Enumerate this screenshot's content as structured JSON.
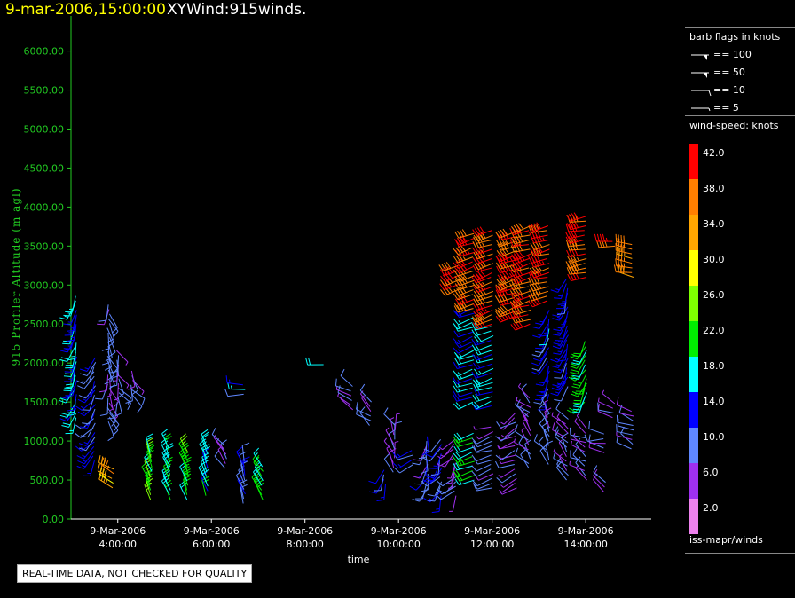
{
  "header": {
    "date_time": "9-mar-2006,15:00:00",
    "title": "XYWind:915winds."
  },
  "chart_data": {
    "type": "scatter",
    "subtype": "wind-barb time-height",
    "xlabel": "time",
    "ylabel": "915 Profiler Altitude (m agl)",
    "ylim": [
      0,
      6200
    ],
    "y_ticks": [
      0,
      500,
      1000,
      1500,
      2000,
      2500,
      3000,
      3500,
      4000,
      4500,
      5000,
      5500,
      6000
    ],
    "y_tick_labels": [
      "0.00",
      "500.00",
      "1000.00",
      "1500.00",
      "2000.00",
      "2500.00",
      "3000.00",
      "3500.00",
      "4000.00",
      "4500.00",
      "5000.00",
      "5500.00",
      "6000.00"
    ],
    "xlim_hours": [
      3.0,
      15.4
    ],
    "x_ticks": [
      {
        "hour": 4,
        "date": "9-Mar-2006",
        "time": "4:00:00"
      },
      {
        "hour": 6,
        "date": "9-Mar-2006",
        "time": "6:00:00"
      },
      {
        "hour": 8,
        "date": "9-Mar-2006",
        "time": "8:00:00"
      },
      {
        "hour": 10,
        "date": "9-Mar-2006",
        "time": "10:00:00"
      },
      {
        "hour": 12,
        "date": "9-Mar-2006",
        "time": "12:00:00"
      },
      {
        "hour": 14,
        "date": "9-Mar-2006",
        "time": "14:00:00"
      }
    ],
    "axis_color": "#22cc22",
    "grid": false,
    "wind_profiles": [
      {
        "hour": 3.1,
        "low": 1300,
        "high": 2900,
        "speed": 16,
        "dir": 200,
        "spread": 20
      },
      {
        "hour": 3.5,
        "low": 750,
        "high": 2100,
        "speed": 12,
        "dir": 210,
        "spread": 25
      },
      {
        "hour": 3.8,
        "low": 1250,
        "high": 2800,
        "speed": 9,
        "dir": 170,
        "spread": 30
      },
      {
        "hour": 4.0,
        "low": 1500,
        "high": 2200,
        "speed": 8,
        "dir": 160,
        "spread": 35
      },
      {
        "hour": 4.3,
        "low": 1600,
        "high": 1950,
        "speed": 10,
        "dir": 150,
        "spread": 30
      },
      {
        "hour": 3.9,
        "low": 400,
        "high": 650,
        "speed": 34,
        "dir": 300,
        "spread": 10
      },
      {
        "hour": 4.7,
        "low": 250,
        "high": 900,
        "speed": 22,
        "dir": 340,
        "spread": 10
      },
      {
        "hour": 5.1,
        "low": 250,
        "high": 950,
        "speed": 20,
        "dir": 340,
        "spread": 10
      },
      {
        "hour": 5.5,
        "low": 250,
        "high": 900,
        "speed": 22,
        "dir": 340,
        "spread": 10
      },
      {
        "hour": 5.9,
        "low": 300,
        "high": 900,
        "speed": 18,
        "dir": 340,
        "spread": 10
      },
      {
        "hour": 6.3,
        "low": 650,
        "high": 1000,
        "speed": 7,
        "dir": 320,
        "spread": 20
      },
      {
        "hour": 6.7,
        "low": 200,
        "high": 750,
        "speed": 12,
        "dir": 340,
        "spread": 15
      },
      {
        "hour": 7.1,
        "low": 250,
        "high": 700,
        "speed": 20,
        "dir": 330,
        "spread": 10
      },
      {
        "hour": 6.7,
        "low": 1600,
        "high": 1750,
        "speed": 14,
        "dir": 270,
        "spread": 10
      },
      {
        "hour": 8.4,
        "low": 1980,
        "high": 2020,
        "speed": 18,
        "dir": 270,
        "spread": 5
      },
      {
        "hour": 9.0,
        "low": 1400,
        "high": 1750,
        "speed": 8,
        "dir": 300,
        "spread": 20
      },
      {
        "hour": 9.4,
        "low": 1200,
        "high": 1550,
        "speed": 8,
        "dir": 310,
        "spread": 20
      },
      {
        "hour": 9.7,
        "low": 450,
        "high": 650,
        "speed": 13,
        "dir": 200,
        "spread": 15
      },
      {
        "hour": 9.9,
        "low": 600,
        "high": 1250,
        "speed": 7,
        "dir": 340,
        "spread": 25
      },
      {
        "hour": 10.3,
        "low": 700,
        "high": 900,
        "speed": 12,
        "dir": 230,
        "spread": 25
      },
      {
        "hour": 10.6,
        "low": 400,
        "high": 1100,
        "speed": 10,
        "dir": 200,
        "spread": 30
      },
      {
        "hour": 10.9,
        "low": 300,
        "high": 1050,
        "speed": 11,
        "dir": 210,
        "spread": 30
      },
      {
        "hour": 11.2,
        "low": 300,
        "high": 1050,
        "speed": 7,
        "dir": 220,
        "spread": 30
      },
      {
        "hour": 11.3,
        "low": 2950,
        "high": 3300,
        "speed": 40,
        "dir": 250,
        "spread": 8
      },
      {
        "hour": 11.6,
        "low": 1500,
        "high": 2700,
        "speed": 16,
        "dir": 250,
        "spread": 8
      },
      {
        "hour": 11.6,
        "low": 2700,
        "high": 3700,
        "speed": 40,
        "dir": 250,
        "spread": 8
      },
      {
        "hour": 11.6,
        "low": 500,
        "high": 1150,
        "speed": 22,
        "dir": 250,
        "spread": 10
      },
      {
        "hour": 12.0,
        "low": 1450,
        "high": 2500,
        "speed": 16,
        "dir": 250,
        "spread": 8
      },
      {
        "hour": 12.0,
        "low": 2500,
        "high": 3700,
        "speed": 40,
        "dir": 250,
        "spread": 8
      },
      {
        "hour": 12.0,
        "low": 400,
        "high": 1200,
        "speed": 8,
        "dir": 250,
        "spread": 15
      },
      {
        "hour": 12.5,
        "low": 2600,
        "high": 3700,
        "speed": 40,
        "dir": 250,
        "spread": 10
      },
      {
        "hour": 12.5,
        "low": 400,
        "high": 1400,
        "speed": 7,
        "dir": 240,
        "spread": 20
      },
      {
        "hour": 12.8,
        "low": 2500,
        "high": 3800,
        "speed": 40,
        "dir": 255,
        "spread": 10
      },
      {
        "hour": 12.8,
        "low": 650,
        "high": 1600,
        "speed": 8,
        "dir": 320,
        "spread": 25
      },
      {
        "hour": 13.2,
        "low": 2800,
        "high": 3800,
        "speed": 40,
        "dir": 255,
        "spread": 8
      },
      {
        "hour": 13.2,
        "low": 1600,
        "high": 2700,
        "speed": 14,
        "dir": 200,
        "spread": 15
      },
      {
        "hour": 13.2,
        "low": 700,
        "high": 1400,
        "speed": 9,
        "dir": 330,
        "spread": 25
      },
      {
        "hour": 13.6,
        "low": 1700,
        "high": 3100,
        "speed": 14,
        "dir": 200,
        "spread": 15
      },
      {
        "hour": 13.6,
        "low": 500,
        "high": 1300,
        "speed": 8,
        "dir": 320,
        "spread": 25
      },
      {
        "hour": 14.0,
        "low": 3100,
        "high": 3900,
        "speed": 40,
        "dir": 260,
        "spread": 8
      },
      {
        "hour": 14.0,
        "low": 1500,
        "high": 2300,
        "speed": 20,
        "dir": 210,
        "spread": 15
      },
      {
        "hour": 14.0,
        "low": 500,
        "high": 1200,
        "speed": 7,
        "dir": 300,
        "spread": 25
      },
      {
        "hour": 14.4,
        "low": 850,
        "high": 1100,
        "speed": 9,
        "dir": 280,
        "spread": 20
      },
      {
        "hour": 14.6,
        "low": 3500,
        "high": 3600,
        "speed": 42,
        "dir": 270,
        "spread": 5
      },
      {
        "hour": 14.6,
        "low": 1300,
        "high": 1500,
        "speed": 8,
        "dir": 300,
        "spread": 20
      },
      {
        "hour": 14.4,
        "low": 350,
        "high": 500,
        "speed": 7,
        "dir": 310,
        "spread": 10
      },
      {
        "hour": 15.0,
        "low": 3100,
        "high": 3550,
        "speed": 37,
        "dir": 280,
        "spread": 10
      },
      {
        "hour": 15.0,
        "low": 900,
        "high": 1400,
        "speed": 8,
        "dir": 300,
        "spread": 20
      }
    ]
  },
  "legend": {
    "barb_title": "barb flags in knots",
    "barbs": [
      {
        "label": "== 100",
        "knots": 100
      },
      {
        "label": "== 50",
        "knots": 50
      },
      {
        "label": "== 10",
        "knots": 10
      },
      {
        "label": "== 5",
        "knots": 5
      }
    ],
    "speed_title": "wind-speed: knots",
    "speed_bins": [
      {
        "label": "42.0",
        "color": "#ff0000"
      },
      {
        "label": "38.0",
        "color": "#ff7f00"
      },
      {
        "label": "34.0",
        "color": "#ffa500"
      },
      {
        "label": "30.0",
        "color": "#ffff00"
      },
      {
        "label": "26.0",
        "color": "#7fff00"
      },
      {
        "label": "22.0",
        "color": "#00ee00"
      },
      {
        "label": "18.0",
        "color": "#00ffff"
      },
      {
        "label": "14.0",
        "color": "#0000ff"
      },
      {
        "label": "10.0",
        "color": "#5f87ff"
      },
      {
        "label": "6.0",
        "color": "#9f30ef"
      },
      {
        "label": "2.0",
        "color": "#ee82ee"
      }
    ],
    "source": "iss-mapr/winds"
  },
  "quality_note": "REAL-TIME DATA, NOT CHECKED FOR QUALITY"
}
